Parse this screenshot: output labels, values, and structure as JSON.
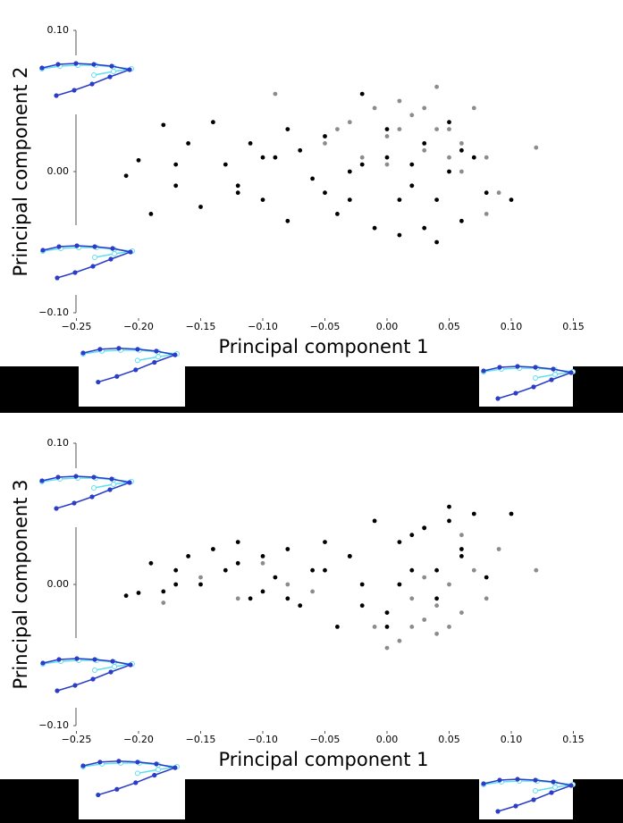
{
  "chart_data": [
    {
      "type": "scatter",
      "xlabel": "Principal component 1",
      "ylabel": "Principal component 2",
      "xlim": [
        -0.25,
        0.15
      ],
      "ylim": [
        -0.1,
        0.1
      ],
      "xticks": [
        {
          "value": -0.25,
          "label": "−0.25"
        },
        {
          "value": -0.2,
          "label": "−0.20"
        },
        {
          "value": -0.15,
          "label": "−0.15"
        },
        {
          "value": -0.1,
          "label": "−0.10"
        },
        {
          "value": -0.05,
          "label": "−0.05"
        },
        {
          "value": 0,
          "label": "0.00"
        },
        {
          "value": 0.05,
          "label": "0.05"
        },
        {
          "value": 0.1,
          "label": "0.10"
        },
        {
          "value": 0.15,
          "label": "0.15"
        }
      ],
      "yticks": [
        {
          "value": -0.1,
          "label": "−0.10"
        },
        {
          "value": 0,
          "label": "0.00"
        },
        {
          "value": 0.1,
          "label": "0.10"
        }
      ],
      "series": [
        {
          "color": "#8c8c8c",
          "x": [
            -0.09,
            -0.05,
            -0.03,
            -0.02,
            -0.01,
            0,
            0.01,
            0.02,
            0.03,
            0.04,
            0.05,
            0.06,
            0.07,
            0.08,
            0.09,
            0.12,
            0.0,
            0.02,
            0.04,
            0.06,
            0.03,
            0.05,
            0.01,
            -0.04,
            0.08
          ],
          "y": [
            0.055,
            0.02,
            0.035,
            0.01,
            0.045,
            0.025,
            0.05,
            0.04,
            0.015,
            0.06,
            0.03,
            0.02,
            0.045,
            0.01,
            -0.015,
            0.017,
            0.005,
            -0.01,
            0.03,
            0.0,
            0.045,
            0.01,
            0.03,
            0.03,
            -0.03
          ]
        },
        {
          "color": "#000000",
          "x": [
            -0.21,
            -0.2,
            -0.19,
            -0.18,
            -0.17,
            -0.16,
            -0.15,
            -0.14,
            -0.13,
            -0.12,
            -0.11,
            -0.1,
            -0.09,
            -0.08,
            -0.07,
            -0.06,
            -0.05,
            -0.04,
            -0.03,
            -0.02,
            -0.01,
            0,
            0.01,
            0.02,
            0.03,
            0.04,
            0.05,
            0.06,
            0.07,
            0.08,
            0.1,
            -0.17,
            -0.12,
            -0.08,
            -0.03,
            0.0,
            0.02,
            0.04,
            0.06,
            -0.02,
            0.03,
            0.01,
            -0.05,
            -0.1,
            0.05
          ],
          "y": [
            -0.003,
            0.008,
            -0.03,
            0.033,
            -0.01,
            0.02,
            -0.025,
            0.035,
            0.005,
            -0.015,
            0.02,
            -0.02,
            0.01,
            -0.035,
            0.015,
            -0.005,
            0.025,
            -0.03,
            0.0,
            0.055,
            -0.04,
            0.03,
            -0.045,
            -0.01,
            0.02,
            -0.02,
            0.035,
            -0.035,
            0.01,
            -0.015,
            -0.02,
            0.005,
            -0.01,
            0.03,
            -0.02,
            0.01,
            0.005,
            -0.05,
            0.015,
            0.005,
            -0.04,
            -0.02,
            -0.015,
            0.01,
            0.0
          ]
        }
      ]
    },
    {
      "type": "scatter",
      "xlabel": "Principal component 1",
      "ylabel": "Principal component 3",
      "xlim": [
        -0.25,
        0.15
      ],
      "ylim": [
        -0.1,
        0.1
      ],
      "xticks": [
        {
          "value": -0.25,
          "label": "−0.25"
        },
        {
          "value": -0.2,
          "label": "−0.20"
        },
        {
          "value": -0.15,
          "label": "−0.15"
        },
        {
          "value": -0.1,
          "label": "−0.10"
        },
        {
          "value": -0.05,
          "label": "−0.05"
        },
        {
          "value": 0,
          "label": "0.00"
        },
        {
          "value": 0.05,
          "label": "0.05"
        },
        {
          "value": 0.1,
          "label": "0.10"
        },
        {
          "value": 0.15,
          "label": "0.15"
        }
      ],
      "yticks": [
        {
          "value": -0.1,
          "label": "−0.10"
        },
        {
          "value": 0,
          "label": "0.00"
        },
        {
          "value": 0.1,
          "label": "0.10"
        }
      ],
      "series": [
        {
          "color": "#8c8c8c",
          "x": [
            -0.18,
            -0.15,
            -0.12,
            -0.1,
            -0.06,
            -0.03,
            -0.01,
            0,
            0.01,
            0.02,
            0.03,
            0.04,
            0.05,
            0.06,
            0.07,
            0.08,
            0.09,
            0.12,
            0.0,
            0.03,
            0.05,
            -0.08,
            0.02,
            0.06,
            0.04
          ],
          "y": [
            -0.013,
            0.005,
            -0.01,
            0.015,
            -0.005,
            0.02,
            -0.03,
            -0.02,
            -0.04,
            -0.01,
            -0.025,
            -0.035,
            0.0,
            -0.02,
            0.01,
            -0.01,
            0.025,
            0.01,
            -0.045,
            0.005,
            -0.03,
            0.0,
            -0.03,
            0.035,
            -0.015
          ]
        },
        {
          "color": "#000000",
          "x": [
            -0.21,
            -0.2,
            -0.19,
            -0.18,
            -0.17,
            -0.16,
            -0.15,
            -0.14,
            -0.13,
            -0.12,
            -0.11,
            -0.1,
            -0.09,
            -0.08,
            -0.07,
            -0.06,
            -0.05,
            -0.04,
            -0.03,
            -0.02,
            -0.01,
            0,
            0.01,
            0.02,
            0.03,
            0.04,
            0.05,
            0.06,
            0.07,
            0.08,
            0.1,
            -0.17,
            -0.12,
            -0.08,
            -0.03,
            0.0,
            0.02,
            0.04,
            0.06,
            -0.02,
            0.03,
            0.01,
            -0.05,
            -0.1,
            0.05
          ],
          "y": [
            -0.008,
            -0.006,
            0.015,
            -0.005,
            0.01,
            0.02,
            0.0,
            0.025,
            0.01,
            0.03,
            -0.01,
            0.02,
            0.005,
            0.025,
            -0.015,
            0.01,
            0.03,
            -0.03,
            0.02,
            0.0,
            0.045,
            -0.02,
            0.03,
            0.01,
            0.04,
            -0.01,
            0.055,
            0.02,
            0.05,
            0.005,
            0.05,
            0.0,
            0.015,
            -0.01,
            0.02,
            -0.03,
            0.035,
            0.01,
            0.025,
            -0.015,
            0.04,
            0.0,
            0.01,
            -0.005,
            0.045
          ]
        }
      ]
    }
  ]
}
